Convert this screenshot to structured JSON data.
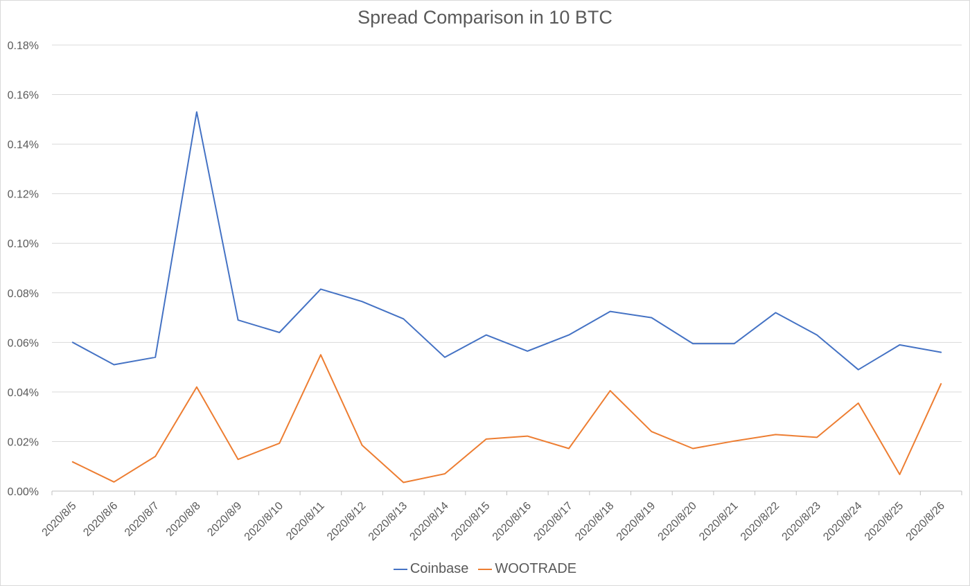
{
  "chart_data": {
    "type": "line",
    "title": "Spread Comparison in 10 BTC",
    "xlabel": "",
    "ylabel": "",
    "x": [
      "2020/8/5",
      "2020/8/6",
      "2020/8/7",
      "2020/8/8",
      "2020/8/9",
      "2020/8/10",
      "2020/8/11",
      "2020/8/12",
      "2020/8/13",
      "2020/8/14",
      "2020/8/15",
      "2020/8/16",
      "2020/8/17",
      "2020/8/18",
      "2020/8/19",
      "2020/8/20",
      "2020/8/21",
      "2020/8/22",
      "2020/8/23",
      "2020/8/24",
      "2020/8/25",
      "2020/8/26"
    ],
    "ylim": [
      0,
      0.18
    ],
    "yticks": [
      "0.00%",
      "0.02%",
      "0.04%",
      "0.06%",
      "0.08%",
      "0.10%",
      "0.12%",
      "0.14%",
      "0.16%",
      "0.18%"
    ],
    "grid": true,
    "legend_position": "bottom",
    "series": [
      {
        "name": "Coinbase",
        "color": "#4472C4",
        "values": [
          0.06,
          0.051,
          0.054,
          0.153,
          0.069,
          0.064,
          0.0815,
          0.0765,
          0.0695,
          0.054,
          0.063,
          0.0565,
          0.063,
          0.0725,
          0.07,
          0.0595,
          0.0595,
          0.072,
          0.063,
          0.049,
          0.059,
          0.056
        ]
      },
      {
        "name": "WOOTRADE",
        "color": "#ED7D31",
        "values": [
          0.0118,
          0.0037,
          0.014,
          0.042,
          0.0128,
          0.0193,
          0.055,
          0.0185,
          0.0035,
          0.007,
          0.021,
          0.0222,
          0.0172,
          0.0405,
          0.024,
          0.0172,
          0.0202,
          0.0228,
          0.0217,
          0.0355,
          0.0067,
          0.0433
        ]
      }
    ]
  }
}
